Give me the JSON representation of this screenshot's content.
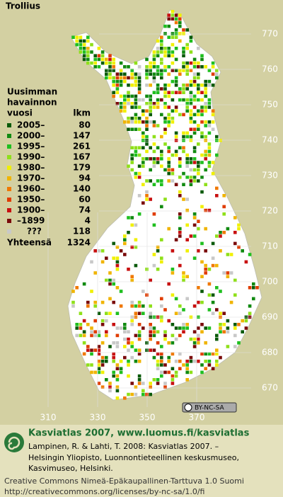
{
  "title": "Trollius",
  "legend": {
    "header": [
      "Uusimman",
      "havainnon",
      "vuosi"
    ],
    "count_header": "lkm",
    "items": [
      {
        "label": "2005–",
        "count": 80,
        "color": "#0a5a0a"
      },
      {
        "label": "2000–",
        "count": 147,
        "color": "#118a11"
      },
      {
        "label": "1995–",
        "count": 261,
        "color": "#1fbf1f"
      },
      {
        "label": "1990–",
        "count": 167,
        "color": "#8fe01a"
      },
      {
        "label": "1980–",
        "count": 179,
        "color": "#f0f000"
      },
      {
        "label": "1970–",
        "count": 94,
        "color": "#f0b400"
      },
      {
        "label": "1960–",
        "count": 140,
        "color": "#f07800"
      },
      {
        "label": "1950–",
        "count": 60,
        "color": "#e03c00"
      },
      {
        "label": "1900–",
        "count": 74,
        "color": "#c81010"
      },
      {
        "label": "–1899",
        "count": 4,
        "color": "#7a0a0a"
      },
      {
        "label": "???",
        "count": 118,
        "color": "#c8c8c8"
      }
    ],
    "total_label": "Yhteensä",
    "total": 1324
  },
  "grid": {
    "x_labels": [
      310,
      330,
      350,
      370
    ],
    "y_labels": [
      770,
      760,
      750,
      740,
      730,
      720,
      710,
      700,
      690,
      680,
      670
    ]
  },
  "license_badge": "BY-NC-SA",
  "footer": {
    "headline": "Kasviatlas 2007, www.luomus.fi/kasviatlas",
    "citation": [
      "Lampinen, R. & Lahti, T. 2008: Kasviatlas 2007. –",
      "Helsingin Yliopisto, Luonnontieteellinen keskusmuseo,",
      "Kasvimuseo, Helsinki."
    ],
    "license": [
      "Creative Commons Nimeä-Epäkaupallinen-Tarttuva 1.0 Suomi",
      "http://creativecommons.org/licenses/by-nc-sa/1.0/fi"
    ]
  }
}
